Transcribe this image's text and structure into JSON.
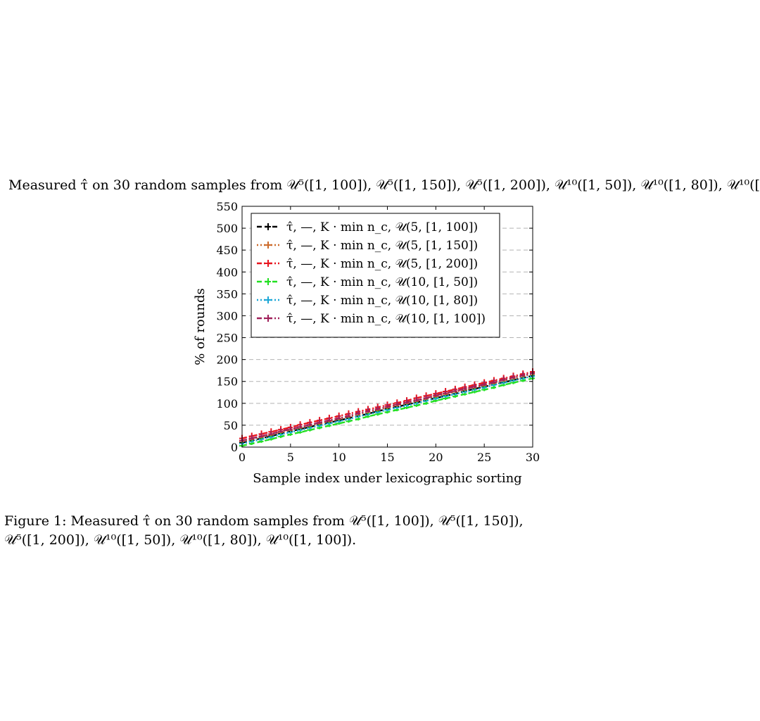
{
  "chart_data": {
    "type": "line",
    "title": "Measured τ̂ on 30 random samples from 𝒰⁵([1, 100]), 𝒰⁵([1, 150]), 𝒰⁵([1, 200]), 𝒰¹⁰([1, 50]), 𝒰¹⁰([1, 80]), 𝒰¹⁰([",
    "xlabel": "Sample index under lexicographic sorting",
    "ylabel": "% of rounds",
    "xlim": [
      0,
      30
    ],
    "ylim": [
      0,
      550
    ],
    "x_ticks": [
      0,
      5,
      10,
      15,
      20,
      25,
      30
    ],
    "y_ticks": [
      0,
      50,
      100,
      150,
      200,
      250,
      300,
      350,
      400,
      450,
      500,
      550
    ],
    "grid": "horizontal dashed",
    "legend_position": "top-left",
    "x": [
      0,
      1,
      2,
      3,
      4,
      5,
      6,
      7,
      8,
      9,
      10,
      11,
      12,
      13,
      14,
      15,
      16,
      17,
      18,
      19,
      20,
      21,
      22,
      23,
      24,
      25,
      26,
      27,
      28,
      29,
      30
    ],
    "series": [
      {
        "name": "τ̂, —, K · min n_c, 𝒰(5, [1, 100])",
        "color": "#000000",
        "dash": "7,4",
        "values": [
          10,
          15,
          20,
          25,
          31,
          36,
          41,
          46,
          51,
          56,
          61,
          66,
          71,
          76,
          82,
          87,
          92,
          97,
          102,
          107,
          112,
          117,
          122,
          128,
          133,
          138,
          143,
          148,
          153,
          158,
          163
        ]
      },
      {
        "name": "τ̂, —, K · min n_c, 𝒰(5, [1, 150])",
        "color": "#cc6a2a",
        "dash": "2,3",
        "values": [
          13,
          18,
          23,
          28,
          34,
          39,
          44,
          49,
          54,
          59,
          64,
          69,
          75,
          80,
          85,
          90,
          95,
          100,
          105,
          110,
          116,
          121,
          126,
          131,
          136,
          141,
          146,
          152,
          157,
          162,
          167
        ]
      },
      {
        "name": "τ̂, —, K · min n_c, 𝒰(5, [1, 200])",
        "color": "#e8141e",
        "dash": "7,3,2,3",
        "values": [
          20,
          25,
          30,
          35,
          40,
          45,
          51,
          56,
          61,
          66,
          71,
          76,
          81,
          86,
          91,
          96,
          101,
          106,
          112,
          117,
          122,
          127,
          132,
          137,
          142,
          147,
          152,
          157,
          162,
          167,
          172
        ]
      },
      {
        "name": "τ̂, —, K · min n_c, 𝒰(10, [1, 50])",
        "color": "#22e022",
        "dash": "7,4",
        "values": [
          3,
          8,
          13,
          18,
          24,
          29,
          34,
          39,
          44,
          49,
          54,
          59,
          64,
          70,
          75,
          80,
          85,
          90,
          95,
          100,
          106,
          111,
          116,
          121,
          126,
          131,
          136,
          142,
          147,
          152,
          157
        ]
      },
      {
        "name": "τ̂, —, K · min n_c, 𝒰(10, [1, 80])",
        "color": "#1aa6d6",
        "dash": "2,3",
        "values": [
          8,
          13,
          18,
          23,
          29,
          34,
          39,
          44,
          49,
          54,
          59,
          64,
          70,
          75,
          80,
          85,
          90,
          95,
          100,
          106,
          111,
          116,
          121,
          126,
          131,
          136,
          142,
          147,
          152,
          157,
          162
        ]
      },
      {
        "name": "τ̂, —, K · min n_c, 𝒰(10, [1, 100])",
        "color": "#a0205a",
        "dash": "7,3,2,3",
        "values": [
          15,
          20,
          25,
          30,
          36,
          41,
          46,
          51,
          56,
          61,
          66,
          71,
          77,
          82,
          87,
          92,
          97,
          102,
          107,
          112,
          118,
          123,
          128,
          133,
          138,
          143,
          148,
          154,
          159,
          164,
          169
        ]
      }
    ]
  },
  "caption": "Figure 1: Measured τ̂ on 30 random samples from 𝒰⁵([1, 100]), 𝒰⁵([1, 150]), 𝒰⁵([1, 200]), 𝒰¹⁰([1, 50]), 𝒰¹⁰([1, 80]), 𝒰¹⁰([1, 100])."
}
